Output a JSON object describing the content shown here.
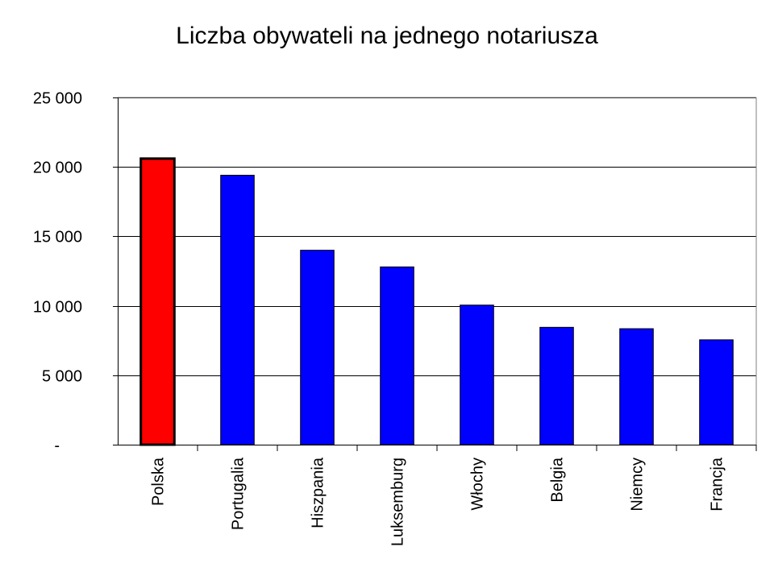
{
  "chart_data": {
    "type": "bar",
    "title": "Liczba obywateli na jednego notariusza",
    "xlabel": "",
    "ylabel": "",
    "categories": [
      "Polska",
      "Portugalia",
      "Hiszpania",
      "Luksemburg",
      "Włochy",
      "Belgia",
      "Niemcy",
      "Francja"
    ],
    "values": [
      20600,
      19400,
      14000,
      12800,
      10050,
      8450,
      8350,
      7550
    ],
    "ylim": [
      0,
      25000
    ],
    "yticks": [
      0,
      5000,
      10000,
      15000,
      20000,
      25000
    ],
    "ytick_labels": [
      "-",
      "5 000",
      "10 000",
      "15 000",
      "20 000",
      "25 000"
    ],
    "grid": true,
    "legend": "none",
    "colors": {
      "highlight": "#ff0000",
      "default": "#0000ff",
      "highlight_border": "#000000",
      "grid": "#000000",
      "plot_border": "#808080"
    },
    "highlight_index": 0
  }
}
